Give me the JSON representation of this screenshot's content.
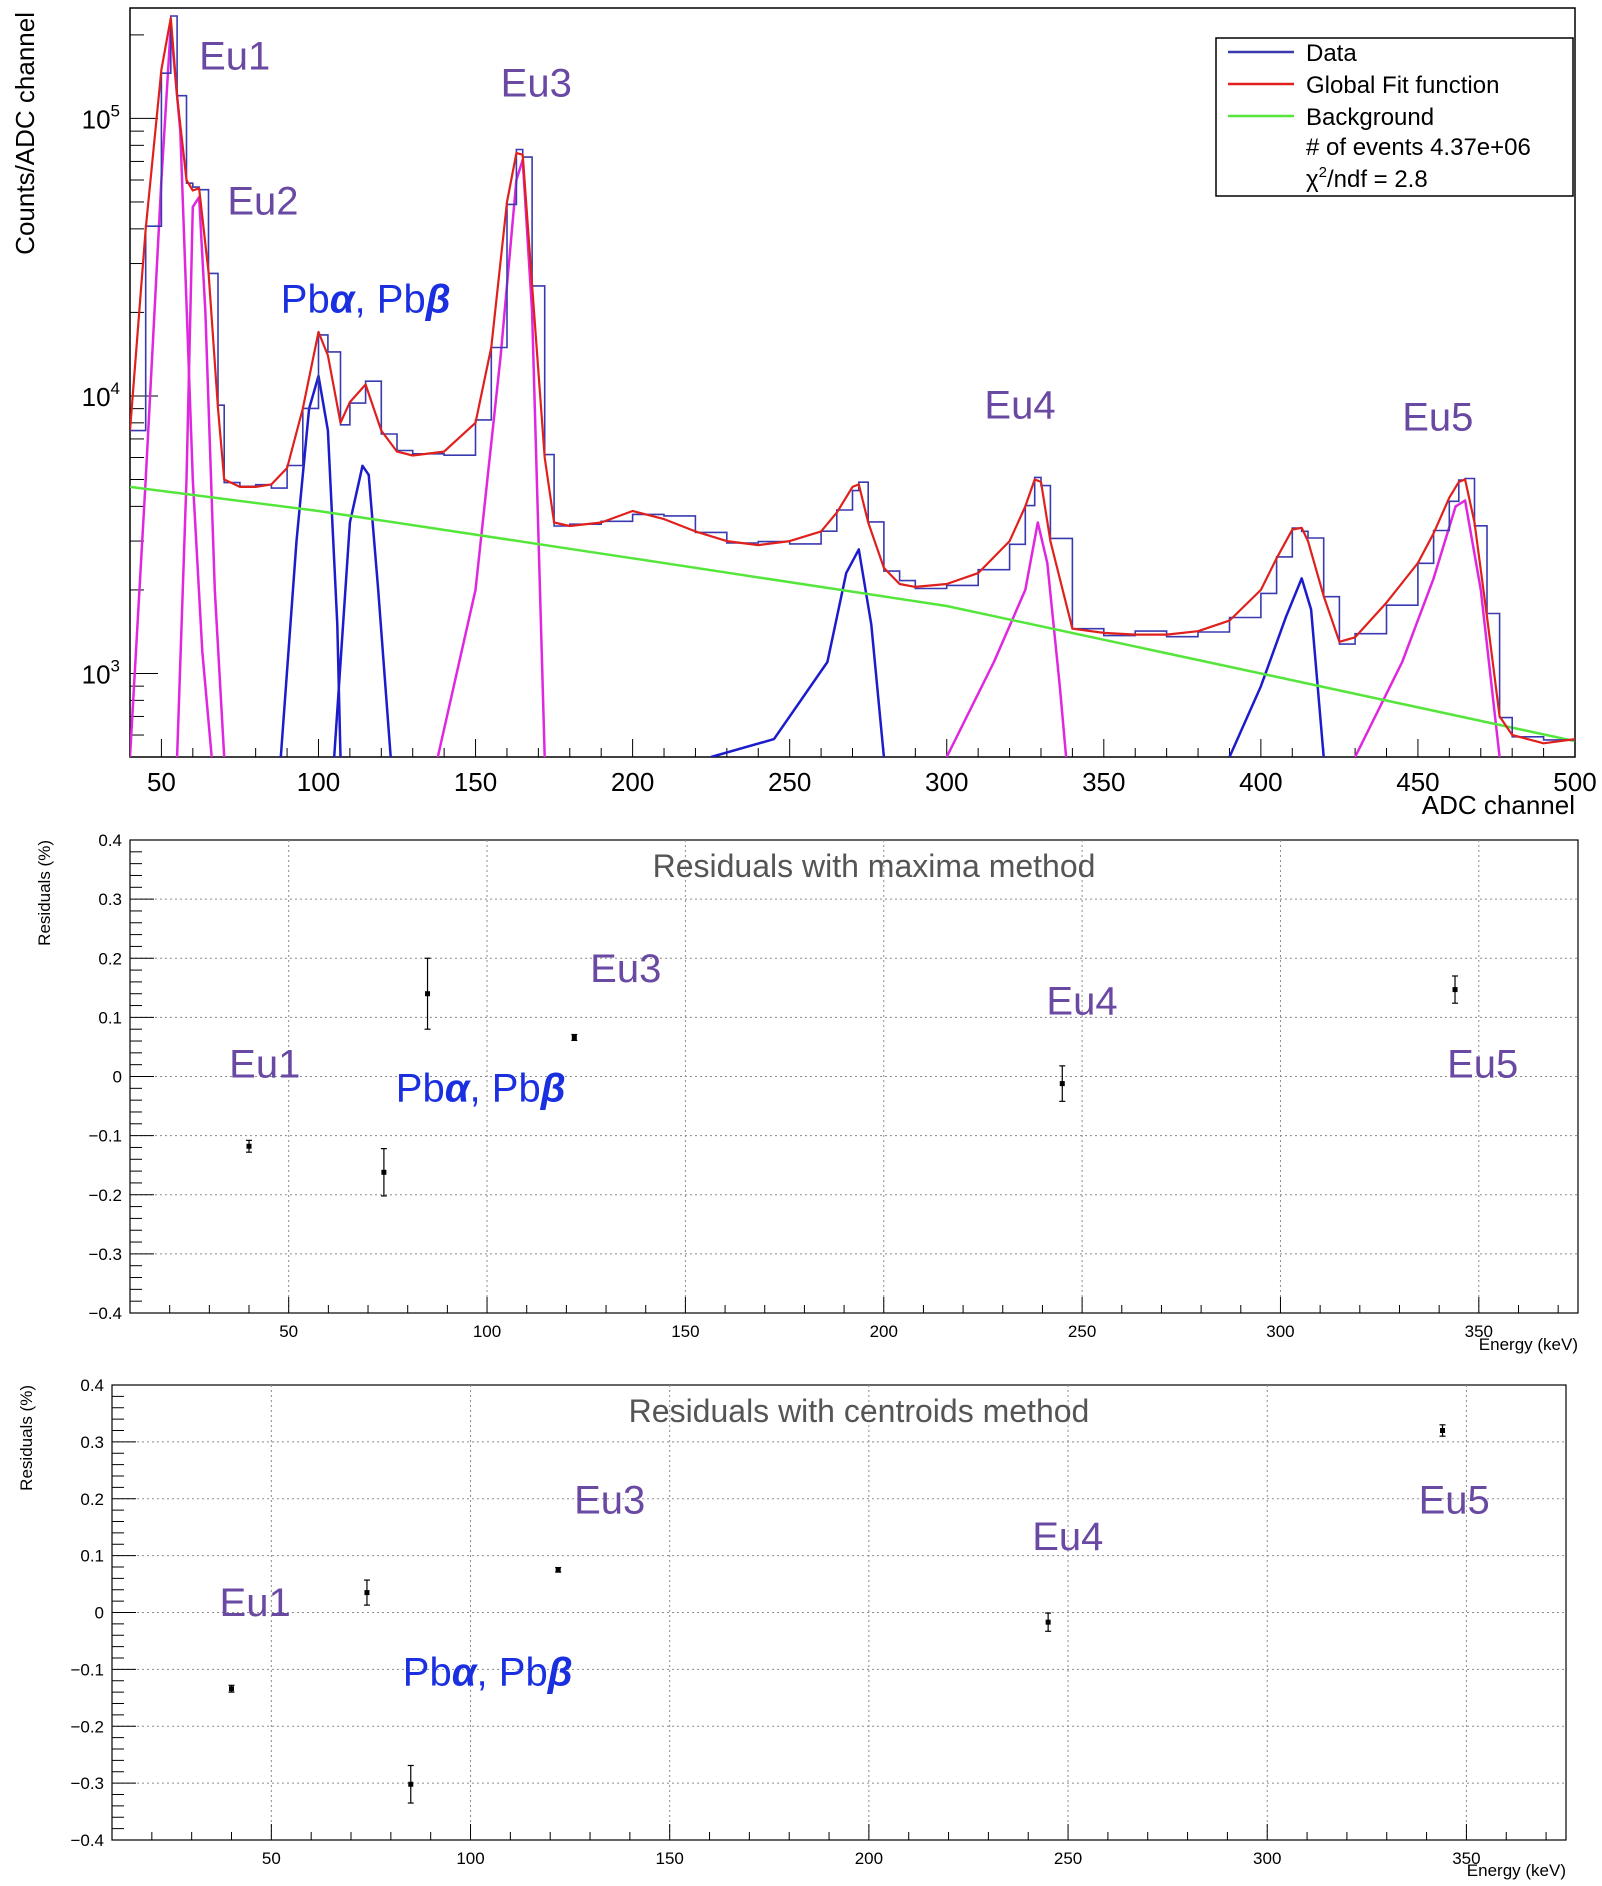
{
  "chart_data": [
    {
      "type": "line",
      "title": "",
      "xlabel": "ADC channel",
      "ylabel": "Counts/ADC channel",
      "xlim": [
        40,
        500
      ],
      "ylim": [
        500,
        250000
      ],
      "yscale": "log",
      "grid": false,
      "legend_position": "top-right",
      "x_ticks": [
        "50",
        "100",
        "150",
        "200",
        "250",
        "300",
        "350",
        "400",
        "450",
        "500"
      ],
      "y_tick_labels": [
        {
          "value": 1000,
          "mant": "10",
          "exp": "3"
        },
        {
          "value": 10000,
          "mant": "10",
          "exp": "4"
        },
        {
          "value": 100000,
          "mant": "10",
          "exp": "5"
        }
      ],
      "legend": {
        "entries": [
          {
            "label": "Data",
            "color": "#3a3ab0"
          },
          {
            "label": "Global Fit function",
            "color": "#e0201c"
          },
          {
            "label": "Background",
            "color": "#55e63c"
          }
        ],
        "events_text": "# of events 4.37e+06",
        "chi2_prefix": "χ",
        "chi2_sup": "2",
        "chi2_suffix": "/ndf = 2.8"
      },
      "series": [
        {
          "name": "Data",
          "color": "#3a3ab0",
          "x": [
            40,
            45,
            50,
            53,
            55,
            58,
            60,
            62,
            65,
            68,
            70,
            75,
            80,
            85,
            90,
            95,
            100,
            103,
            107,
            110,
            115,
            120,
            125,
            130,
            140,
            150,
            155,
            160,
            163,
            165,
            168,
            172,
            175,
            180,
            190,
            200,
            210,
            220,
            230,
            240,
            250,
            260,
            265,
            270,
            272,
            275,
            280,
            285,
            290,
            300,
            310,
            320,
            325,
            328,
            330,
            333,
            340,
            350,
            360,
            370,
            380,
            390,
            400,
            405,
            410,
            413,
            415,
            420,
            425,
            430,
            440,
            450,
            455,
            460,
            463,
            465,
            468,
            472,
            476,
            480,
            490,
            500
          ],
          "y": [
            7500,
            40000,
            150000,
            230000,
            120000,
            60000,
            55000,
            56000,
            28000,
            9000,
            5000,
            4700,
            4700,
            4800,
            5500,
            9000,
            17000,
            14000,
            8000,
            9500,
            11000,
            7500,
            6300,
            6100,
            6300,
            8000,
            15000,
            50000,
            75000,
            74000,
            25000,
            6000,
            3500,
            3400,
            3500,
            3850,
            3600,
            3250,
            3000,
            2900,
            3000,
            3250,
            3800,
            4700,
            4800,
            3500,
            2400,
            2100,
            2050,
            2100,
            2300,
            3000,
            4000,
            5000,
            4900,
            3000,
            1450,
            1400,
            1380,
            1380,
            1420,
            1550,
            2000,
            2600,
            3300,
            3350,
            3000,
            1900,
            1300,
            1350,
            1800,
            2500,
            3200,
            4300,
            4900,
            5000,
            3500,
            1600,
            700,
            600,
            560,
            580
          ]
        },
        {
          "name": "Global Fit function",
          "color": "#e0201c",
          "x": [
            40,
            45,
            50,
            53,
            55,
            58,
            60,
            62,
            65,
            68,
            70,
            75,
            80,
            85,
            90,
            95,
            100,
            103,
            107,
            110,
            115,
            120,
            125,
            130,
            140,
            150,
            155,
            160,
            163,
            165,
            168,
            172,
            175,
            180,
            190,
            200,
            210,
            220,
            230,
            240,
            250,
            260,
            265,
            270,
            272,
            275,
            280,
            285,
            290,
            300,
            310,
            320,
            325,
            328,
            330,
            333,
            340,
            350,
            360,
            370,
            380,
            390,
            400,
            405,
            410,
            413,
            415,
            420,
            425,
            430,
            440,
            450,
            455,
            460,
            463,
            465,
            468,
            472,
            476,
            480,
            490,
            500
          ],
          "y": [
            7500,
            40000,
            150000,
            230000,
            120000,
            60000,
            55000,
            56000,
            28000,
            9000,
            5000,
            4700,
            4700,
            4800,
            5500,
            9000,
            17000,
            14000,
            8000,
            9500,
            11000,
            7500,
            6300,
            6100,
            6300,
            8000,
            15000,
            50000,
            75000,
            74000,
            25000,
            6000,
            3500,
            3400,
            3500,
            3850,
            3600,
            3250,
            3000,
            2900,
            3000,
            3250,
            3800,
            4700,
            4800,
            3500,
            2400,
            2100,
            2050,
            2100,
            2300,
            3000,
            4000,
            5000,
            4900,
            3000,
            1450,
            1400,
            1380,
            1380,
            1420,
            1550,
            2000,
            2600,
            3300,
            3350,
            3000,
            1900,
            1300,
            1350,
            1800,
            2500,
            3200,
            4300,
            4900,
            5000,
            3500,
            1600,
            700,
            600,
            560,
            580
          ]
        },
        {
          "name": "Background",
          "color": "#55e63c",
          "x": [
            40,
            100,
            200,
            300,
            400,
            500
          ],
          "y": [
            4700,
            3850,
            2600,
            1750,
            1000,
            570
          ]
        }
      ],
      "components": [
        {
          "color": "#e027e0",
          "x": [
            40,
            45,
            50,
            53,
            56,
            60,
            63,
            66
          ],
          "y": [
            500,
            5000,
            60000,
            215000,
            90000,
            5000,
            1200,
            500
          ]
        },
        {
          "color": "#e027e0",
          "x": [
            55,
            58,
            60,
            62,
            64,
            67,
            70
          ],
          "y": [
            500,
            5000,
            48000,
            52000,
            20000,
            2000,
            500
          ]
        },
        {
          "color": "#e027e0",
          "x": [
            138,
            150,
            158,
            163,
            165,
            168,
            172
          ],
          "y": [
            500,
            2000,
            14000,
            60000,
            71000,
            20000,
            500
          ]
        },
        {
          "color": "#e027e0",
          "x": [
            300,
            315,
            325,
            329,
            332,
            336,
            338
          ],
          "y": [
            500,
            1100,
            2000,
            3500,
            2500,
            900,
            500
          ]
        },
        {
          "color": "#e027e0",
          "x": [
            430,
            445,
            455,
            462,
            465,
            470,
            476
          ],
          "y": [
            500,
            1100,
            2200,
            4000,
            4200,
            2000,
            500
          ]
        },
        {
          "color": "#1c1ccd",
          "x": [
            88,
            93,
            97,
            100,
            103,
            106,
            107
          ],
          "y": [
            500,
            3000,
            9000,
            11800,
            7500,
            1500,
            500
          ]
        },
        {
          "color": "#1c1ccd",
          "x": [
            105,
            110,
            114,
            116,
            119,
            123
          ],
          "y": [
            500,
            3500,
            5600,
            5200,
            2000,
            500
          ]
        },
        {
          "color": "#1c1ccd",
          "x": [
            225,
            245,
            262,
            268,
            272,
            276,
            280
          ],
          "y": [
            500,
            580,
            1100,
            2300,
            2800,
            1500,
            500
          ]
        },
        {
          "color": "#1c1ccd",
          "x": [
            390,
            400,
            408,
            413,
            416,
            420
          ],
          "y": [
            500,
            900,
            1600,
            2200,
            1700,
            500
          ]
        }
      ],
      "annotations": [
        {
          "text": "Eu1",
          "x": 62,
          "y": 150000,
          "color": "#6a49a3"
        },
        {
          "text": "Eu2",
          "x": 71,
          "y": 45000,
          "color": "#6a49a3"
        },
        {
          "text": "Pbα, Pbβ",
          "x": 88,
          "y": 20000,
          "color": "#1a2fe0"
        },
        {
          "text": "Eu3",
          "x": 158,
          "y": 120000,
          "color": "#6a49a3"
        },
        {
          "text": "Eu4",
          "x": 312,
          "y": 8300,
          "color": "#6a49a3"
        },
        {
          "text": "Eu5",
          "x": 445,
          "y": 7500,
          "color": "#6a49a3"
        }
      ]
    },
    {
      "type": "scatter",
      "title": "Residuals with maxima method",
      "xlabel": "Energy (keV)",
      "ylabel": "Residuals (%)",
      "xlim": [
        10,
        375
      ],
      "ylim": [
        -0.4,
        0.4
      ],
      "grid": true,
      "x_ticks": [
        "50",
        "100",
        "150",
        "200",
        "250",
        "300",
        "350"
      ],
      "y_ticks": [
        "−0.4",
        "−0.3",
        "−0.2",
        "−0.1",
        "0",
        "0.1",
        "0.2",
        "0.3",
        "0.4"
      ],
      "series": [
        {
          "x": [
            40,
            74,
            85,
            122,
            245,
            344
          ],
          "y": [
            -0.118,
            -0.162,
            0.14,
            0.066,
            -0.012,
            0.147
          ],
          "yerr": [
            0.01,
            0.04,
            0.06,
            0.005,
            0.03,
            0.023
          ]
        }
      ],
      "annotations": [
        {
          "text": "Eu1",
          "x": 35,
          "y": -0.002,
          "color": "#6a49a3"
        },
        {
          "text": "Pbα, Pbβ",
          "x": 77,
          "y": -0.042,
          "color": "#1a2fe0"
        },
        {
          "text": "Eu3",
          "x": 126,
          "y": 0.16,
          "color": "#6a49a3"
        },
        {
          "text": "Eu4",
          "x": 241,
          "y": 0.105,
          "color": "#6a49a3"
        },
        {
          "text": "Eu5",
          "x": 342,
          "y": -0.002,
          "color": "#6a49a3"
        }
      ]
    },
    {
      "type": "scatter",
      "title": "Residuals with centroids method",
      "xlabel": "Energy (keV)",
      "ylabel": "Residuals (%)",
      "xlim": [
        10,
        375
      ],
      "ylim": [
        -0.4,
        0.4
      ],
      "grid": true,
      "x_ticks": [
        "50",
        "100",
        "150",
        "200",
        "250",
        "300",
        "350"
      ],
      "y_ticks": [
        "−0.4",
        "−0.3",
        "−0.2",
        "−0.1",
        "0",
        "0.1",
        "0.2",
        "0.3",
        "0.4"
      ],
      "series": [
        {
          "x": [
            40,
            74,
            85,
            122,
            245,
            344
          ],
          "y": [
            -0.134,
            0.035,
            -0.302,
            0.075,
            -0.017,
            0.32
          ],
          "yerr": [
            0.006,
            0.022,
            0.033,
            0.004,
            0.016,
            0.01
          ]
        }
      ],
      "annotations": [
        {
          "text": "Eu1",
          "x": 37,
          "y": -0.006,
          "color": "#6a49a3"
        },
        {
          "text": "Pbα, Pbβ",
          "x": 83,
          "y": -0.128,
          "color": "#1a2fe0"
        },
        {
          "text": "Eu3",
          "x": 126,
          "y": 0.174,
          "color": "#6a49a3"
        },
        {
          "text": "Eu4",
          "x": 241,
          "y": 0.11,
          "color": "#6a49a3"
        },
        {
          "text": "Eu5",
          "x": 338,
          "y": 0.174,
          "color": "#6a49a3"
        }
      ]
    }
  ]
}
